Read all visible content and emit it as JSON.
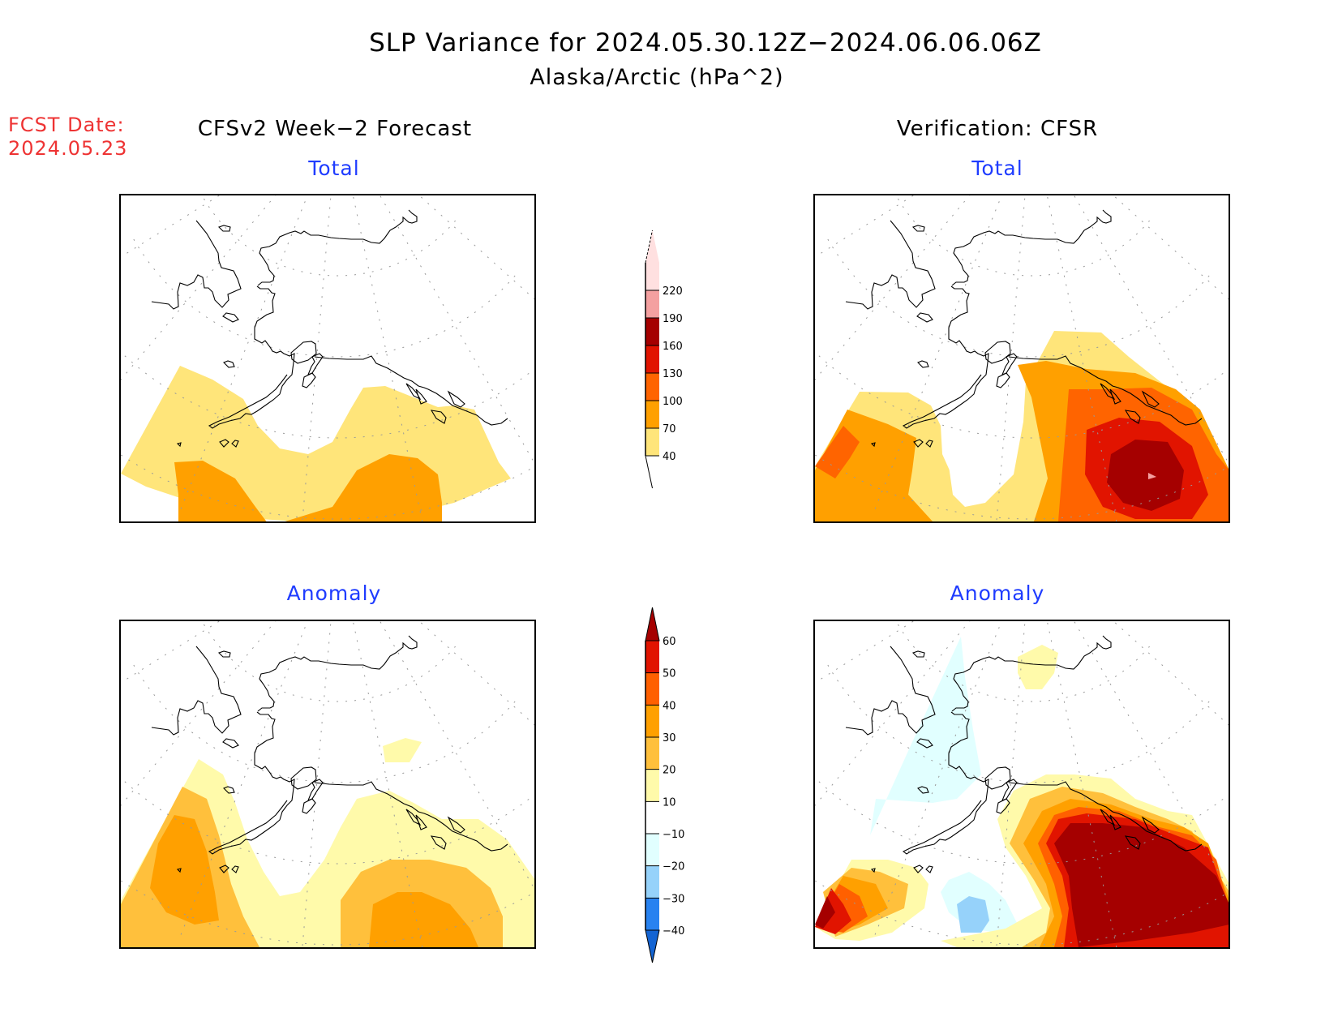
{
  "header": {
    "title": "SLP Variance for 2024.05.30.12Z−2024.06.06.06Z",
    "subtitle": "Alaska/Arctic (hPa^2)",
    "fcst_label": "FCST Date:",
    "fcst_date": "2024.05.23"
  },
  "columns": {
    "left": "CFSv2 Week−2 Forecast",
    "right": "Verification: CFSR"
  },
  "chart_data": [
    {
      "type": "heatmap",
      "id": "forecast-total",
      "title": "Total",
      "column": "CFSv2 Week-2 Forecast",
      "region": "Alaska/Arctic",
      "units": "hPa^2",
      "colorbar": "total",
      "description": "Variance 40-70 band over Bering Sea, S Alaska and Gulf of Alaska; 70-100 over Aleutians (west) and south of Gulf of Alaska; rest below 40",
      "max_level": "70-100"
    },
    {
      "type": "heatmap",
      "id": "verification-total",
      "title": "Total",
      "column": "Verification: CFSR",
      "region": "Alaska/Arctic",
      "units": "hPa^2",
      "colorbar": "total",
      "description": "Max centered in Gulf of Alaska (160-190, small spot 190-220); 100-130 band W Bering/Kamchatka; 40-70 ring around",
      "max_level": "190-220"
    },
    {
      "type": "heatmap",
      "id": "forecast-anomaly",
      "title": "Anomaly",
      "column": "CFSv2 Week-2 Forecast",
      "region": "Alaska/Arctic",
      "units": "hPa^2",
      "colorbar": "anomaly",
      "description": "Positive anomalies 10-40 over W Bering and S of Gulf of Alaska; small 10-20 patch N of Alaska; no negative anomalies",
      "max_level": "30-40"
    },
    {
      "type": "heatmap",
      "id": "verification-anomaly",
      "title": "Anomaly",
      "column": "Verification: CFSR",
      "region": "Alaska/Arctic",
      "units": "hPa^2",
      "colorbar": "anomaly",
      "description": "Strong positive >60 over Gulf of Alaska and SE Alaska; >60 at western edge (Kamchatka); -10 to -20 over Chukotka/Siberia; -20 to -30 over S Bering Sea; small 10-20 patch over Arctic Ocean",
      "max_level": ">60",
      "min_level": "-30 to -20"
    }
  ],
  "colorbars": {
    "total": {
      "levels": [
        40,
        70,
        100,
        130,
        160,
        190,
        220
      ],
      "labels": [
        "40",
        "70",
        "100",
        "130",
        "160",
        "190",
        "220"
      ],
      "colors": [
        "#ffe57a",
        "#ffa000",
        "#ff6400",
        "#e11400",
        "#a50000",
        "#f4a0a0",
        "#ffe0e0"
      ],
      "below_color": "#ffffff",
      "above_color": "#ffe0e0"
    },
    "anomaly": {
      "levels": [
        -40,
        -30,
        -20,
        -10,
        10,
        20,
        30,
        40,
        50,
        60
      ],
      "labels": [
        "−40",
        "−30",
        "−20",
        "−10",
        "10",
        "20",
        "30",
        "40",
        "50",
        "60"
      ],
      "colors": [
        "#2882f0",
        "#96d2fa",
        "#e1ffff",
        "#ffffff",
        "#fffaaa",
        "#ffc03c",
        "#ffa000",
        "#ff6000",
        "#e11400"
      ],
      "below_color": "#1464d2",
      "above_color": "#a50000"
    }
  },
  "panel_titles": {
    "total": "Total",
    "anomaly": "Anomaly"
  }
}
